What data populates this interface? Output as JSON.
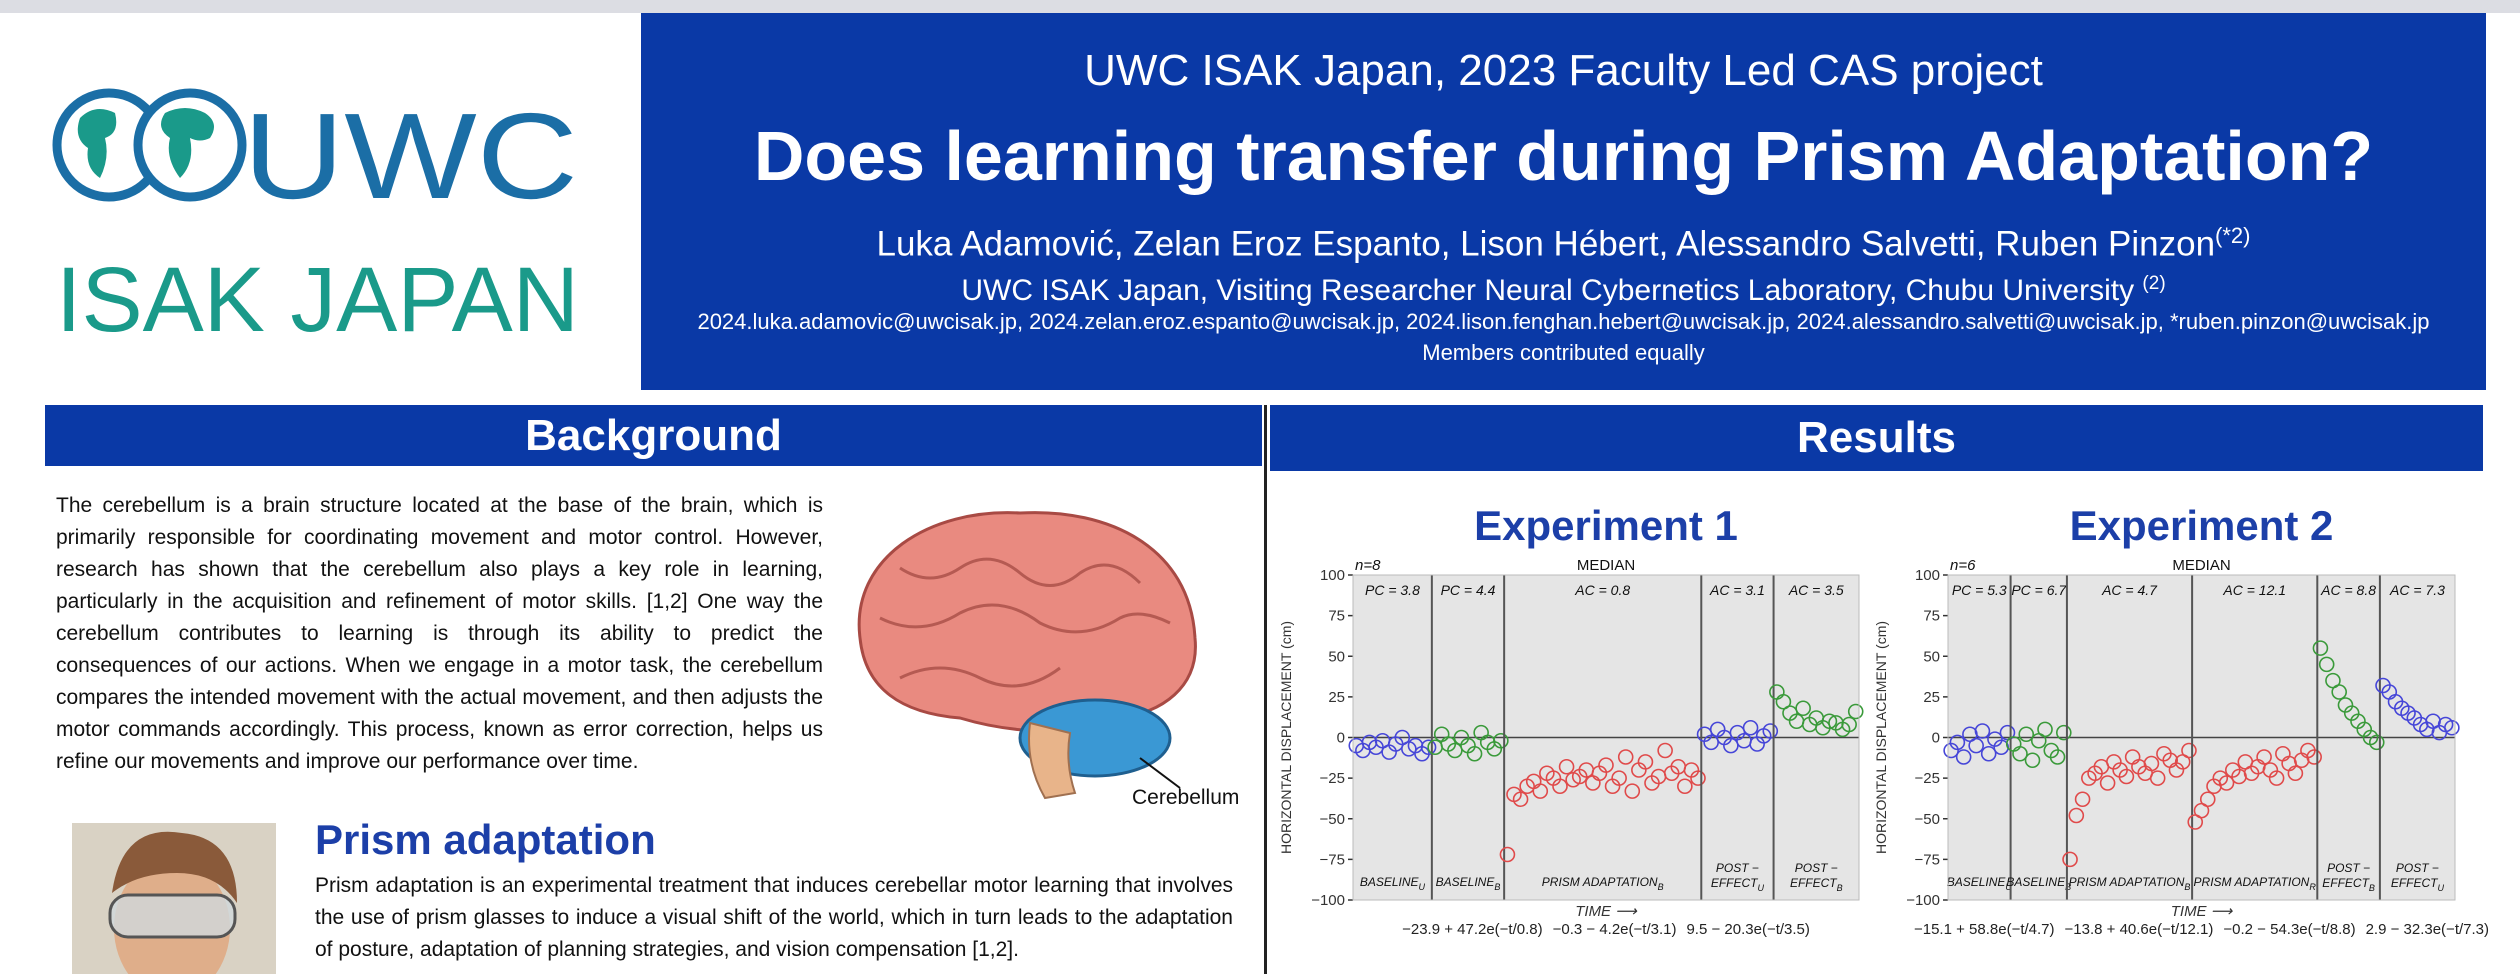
{
  "logo": {
    "line1": "UWC",
    "line2": "ISAK JAPAN"
  },
  "header": {
    "subtitle": "UWC ISAK Japan, 2023 Faculty Led CAS project",
    "title": "Does learning transfer during Prism Adaptation?",
    "authors": "Luka Adamović, Zelan Eroz Espanto, Lison Hébert, Alessandro Salvetti, Ruben Pinzon",
    "authors_note": "(*2)",
    "affiliation": "UWC ISAK Japan, Visiting Researcher Neural Cybernetics Laboratory, Chubu University",
    "affiliation_note": "(2)",
    "emails": "2024.luka.adamovic@uwcisak.jp, 2024.zelan.eroz.espanto@uwcisak.jp, 2024.lison.fenghan.hebert@uwcisak.jp, 2024.alessandro.salvetti@uwcisak.jp, *ruben.pinzon@uwcisak.jp",
    "note": "Members contributed equally"
  },
  "background": {
    "heading": "Background",
    "text": "The cerebellum is a brain structure located at the base of the brain, which is primarily responsible for coordinating movement and motor control. However, research has shown that the cerebellum also plays a key role in learning, particularly in the acquisition and refinement of motor skills. [1,2] One way the cerebellum contributes to learning is through its ability to predict the consequences of our actions. When we engage in a motor task, the cerebellum compares the intended movement with the actual movement, and then adjusts the motor commands accordingly. This process, known as error correction, helps us refine our movements and improve our performance over time.",
    "figure_label": "Cerebellum"
  },
  "prism": {
    "heading": "Prism adaptation",
    "text": "Prism adaptation is an experimental treatment that induces cerebellar motor learning that involves the use of prism glasses to induce a visual shift of the world, which in turn leads to the adaptation of posture, adaptation of planning strategies, and vision compensation [1,2]."
  },
  "results": {
    "heading": "Results"
  },
  "chart_data": [
    {
      "type": "strip",
      "title": "Experiment 1",
      "n_label": "n=8",
      "stat_label": "MEDIAN",
      "y_label": "HORIZONTAL DISPLACEMENT (cm)",
      "x_label": "TIME ⟶",
      "ylim": [
        -100,
        100
      ],
      "yticks": [
        {
          "value": 100,
          "label": "100"
        },
        {
          "value": 75,
          "label": "75"
        },
        {
          "value": 50,
          "label": "50"
        },
        {
          "value": 25,
          "label": "25"
        },
        {
          "value": 0,
          "label": "0"
        },
        {
          "value": -25,
          "label": "−25"
        },
        {
          "value": -50,
          "label": "−50"
        },
        {
          "value": -75,
          "label": "−75"
        },
        {
          "value": -100,
          "label": "−100"
        }
      ],
      "series": [
        {
          "name": "BASELINE",
          "subscript": "U",
          "annotation": "PC = 3.8",
          "color": "#4646d8",
          "values": [
            -5,
            -8,
            -3,
            -6,
            -2,
            -9,
            -4,
            0,
            -7,
            -5,
            -10,
            -6
          ]
        },
        {
          "name": "BASELINE",
          "subscript": "B",
          "annotation": "PC = 4.4",
          "color": "#3a9a3a",
          "values": [
            -6,
            2,
            -4,
            -8,
            0,
            -5,
            -10,
            3,
            -3,
            -7,
            -2
          ]
        },
        {
          "name": "PRISM ADAPTATION",
          "subscript": "B",
          "annotation": "AC = 0.8",
          "color": "#e04a4a",
          "values": [
            -72,
            -35,
            -38,
            -30,
            -27,
            -33,
            -22,
            -25,
            -30,
            -18,
            -26,
            -24,
            -20,
            -28,
            -22,
            -17,
            -30,
            -25,
            -12,
            -33,
            -20,
            -15,
            -28,
            -24,
            -8,
            -22,
            -18,
            -30,
            -20,
            -25
          ]
        },
        {
          "name": "POST −",
          "name_line2": "EFFECT",
          "subscript": "U",
          "annotation": "AC = 3.1",
          "color": "#4646d8",
          "values": [
            2,
            -3,
            5,
            0,
            -5,
            3,
            -2,
            6,
            -4,
            1,
            4
          ]
        },
        {
          "name": "POST −",
          "name_line2": "EFFECT",
          "subscript": "B",
          "annotation": "AC = 3.5",
          "color": "#3a9a3a",
          "values": [
            28,
            22,
            15,
            10,
            18,
            8,
            12,
            6,
            10,
            9,
            5,
            8,
            16
          ]
        }
      ],
      "fit_labels": [
        "−23.9 + 47.2e(−t/0.8)",
        "−0.3 − 4.2e(−t/3.1)",
        "9.5 − 20.3e(−t/3.5)"
      ]
    },
    {
      "type": "strip",
      "title": "Experiment 2",
      "n_label": "n=6",
      "stat_label": "MEDIAN",
      "y_label": "HORIZONTAL DISPLACEMENT (cm)",
      "x_label": "TIME ⟶",
      "ylim": [
        -100,
        100
      ],
      "yticks": [
        {
          "value": 100,
          "label": "100"
        },
        {
          "value": 75,
          "label": "75"
        },
        {
          "value": 50,
          "label": "50"
        },
        {
          "value": 25,
          "label": "25"
        },
        {
          "value": 0,
          "label": "0"
        },
        {
          "value": -25,
          "label": "−25"
        },
        {
          "value": -50,
          "label": "−50"
        },
        {
          "value": -75,
          "label": "−75"
        },
        {
          "value": -100,
          "label": "−100"
        }
      ],
      "series": [
        {
          "name": "BASELINE",
          "subscript": "U",
          "annotation": "PC = 5.3",
          "color": "#4646d8",
          "values": [
            -8,
            -3,
            -12,
            2,
            -5,
            4,
            -10,
            -1,
            -6,
            3
          ]
        },
        {
          "name": "BASELINE",
          "subscript": "B",
          "annotation": "PC = 6.7",
          "color": "#3a9a3a",
          "values": [
            -4,
            -10,
            2,
            -14,
            -2,
            5,
            -8,
            -12,
            3
          ]
        },
        {
          "name": "PRISM ADAPTATION",
          "subscript": "B",
          "annotation": "AC = 4.7",
          "color": "#e04a4a",
          "values": [
            -75,
            -48,
            -38,
            -25,
            -22,
            -18,
            -28,
            -15,
            -20,
            -24,
            -12,
            -18,
            -22,
            -16,
            -25,
            -10,
            -14,
            -20,
            -15,
            -8
          ]
        },
        {
          "name": "PRISM ADAPTATION",
          "subscript": "R",
          "annotation": "AC = 12.1",
          "color": "#e04a4a",
          "values": [
            -52,
            -45,
            -38,
            -30,
            -25,
            -28,
            -20,
            -24,
            -15,
            -22,
            -18,
            -12,
            -20,
            -25,
            -10,
            -16,
            -22,
            -14,
            -8,
            -12
          ]
        },
        {
          "name": "POST −",
          "name_line2": "EFFECT",
          "subscript": "B",
          "annotation": "AC = 8.8",
          "color": "#3a9a3a",
          "values": [
            55,
            45,
            35,
            28,
            20,
            15,
            10,
            5,
            0,
            -3
          ]
        },
        {
          "name": "POST −",
          "name_line2": "EFFECT",
          "subscript": "U",
          "annotation": "AC = 7.3",
          "color": "#4646d8",
          "values": [
            32,
            28,
            22,
            18,
            15,
            12,
            8,
            5,
            10,
            3,
            8,
            6
          ]
        }
      ],
      "fit_labels": [
        "−15.1 + 58.8e(−t/4.7)",
        "−13.8 + 40.6e(−t/12.1)",
        "−0.2 − 54.3e(−t/8.8)",
        "2.9 − 32.3e(−t/7.3)"
      ]
    }
  ]
}
